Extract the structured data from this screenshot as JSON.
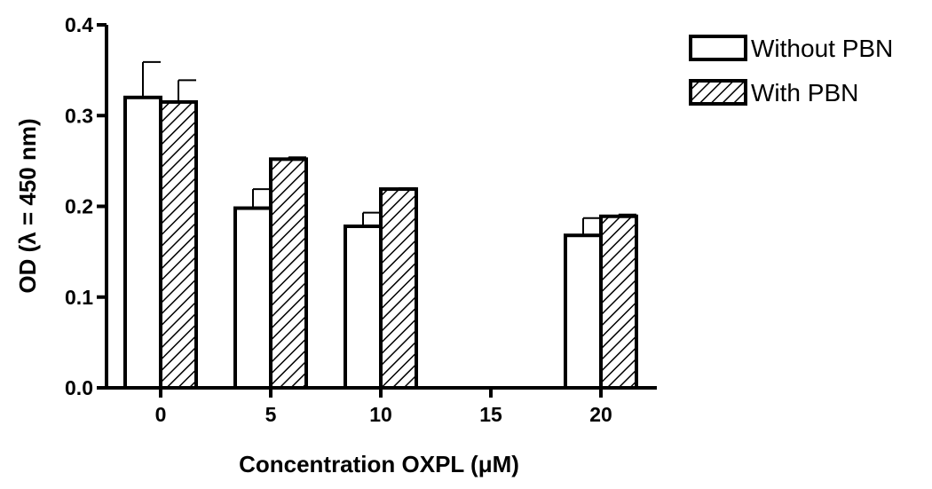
{
  "chart_data": {
    "type": "bar",
    "categories": [
      "0",
      "5",
      "10",
      "15",
      "20"
    ],
    "series": [
      {
        "name": "Without PBN",
        "values": [
          0.32,
          0.198,
          0.178,
          null,
          0.168
        ],
        "errors": [
          0.039,
          0.021,
          0.015,
          null,
          0.019
        ],
        "fill": "none"
      },
      {
        "name": "With PBN",
        "values": [
          0.315,
          0.252,
          0.219,
          null,
          0.189
        ],
        "errors": [
          0.024,
          0.002,
          0.001,
          null,
          0.002
        ],
        "fill": "diagonal-hatch"
      }
    ],
    "xlabel": "Concentration OXPL (μM)",
    "ylabel": "OD (λ = 450 nm)",
    "ylim": [
      0,
      0.4
    ],
    "yticks": [
      "0.0",
      "0.1",
      "0.2",
      "0.3",
      "0.4"
    ],
    "legend_position": "top-right",
    "grid": false,
    "colors": {
      "stroke": "#000000",
      "background": "#ffffff"
    }
  }
}
